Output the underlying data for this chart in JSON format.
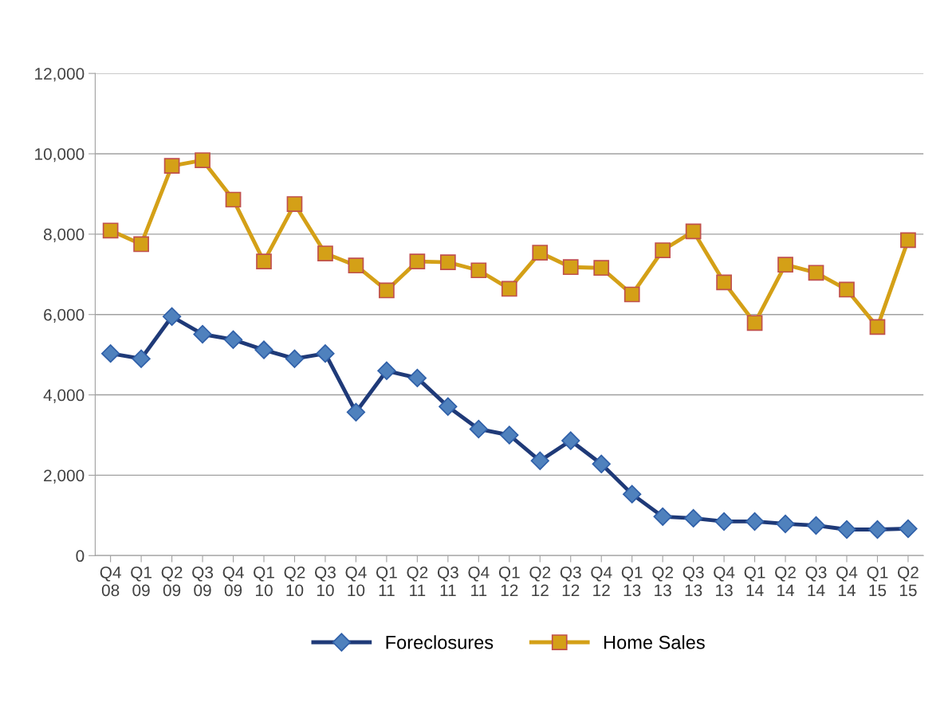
{
  "chart_data": {
    "type": "line",
    "categories": [
      "Q4\n08",
      "Q1\n09",
      "Q2\n09",
      "Q3\n09",
      "Q4\n09",
      "Q1\n10",
      "Q2\n10",
      "Q3\n10",
      "Q4\n10",
      "Q1\n11",
      "Q2\n11",
      "Q3\n11",
      "Q4\n11",
      "Q1\n12",
      "Q2\n12",
      "Q3\n12",
      "Q4\n12",
      "Q1\n13",
      "Q2\n13",
      "Q3\n13",
      "Q4\n13",
      "Q1\n14",
      "Q2\n14",
      "Q3\n14",
      "Q4\n14",
      "Q1\n15",
      "Q2\n15"
    ],
    "series": [
      {
        "name": "Foreclosures",
        "color": "#1f3a78",
        "marker": "diamond",
        "values": [
          5030,
          4900,
          5950,
          5510,
          5375,
          5120,
          4900,
          5030,
          3570,
          4600,
          4420,
          3710,
          3150,
          3000,
          2360,
          2860,
          2280,
          1530,
          970,
          930,
          850,
          850,
          790,
          750,
          650,
          650,
          670
        ]
      },
      {
        "name": "Home Sales",
        "color": "#d4a017",
        "marker": "square",
        "values": [
          8090,
          7750,
          9700,
          9840,
          8860,
          7320,
          8750,
          7520,
          7220,
          6600,
          7320,
          7300,
          7100,
          6640,
          7540,
          7180,
          7160,
          6500,
          7600,
          8070,
          6800,
          5790,
          7240,
          7040,
          6620,
          5690,
          7850
        ]
      }
    ],
    "ylim": [
      0,
      12000
    ],
    "yticks": [
      {
        "value": 0,
        "label": "0"
      },
      {
        "value": 2000,
        "label": "2,000"
      },
      {
        "value": 4000,
        "label": "4,000"
      },
      {
        "value": 6000,
        "label": "6,000"
      },
      {
        "value": 8000,
        "label": "8,000"
      },
      {
        "value": 10000,
        "label": "10,000"
      },
      {
        "value": 12000,
        "label": "12,000"
      }
    ],
    "grid": "y",
    "legend": "bottom",
    "line_style": "solid"
  }
}
